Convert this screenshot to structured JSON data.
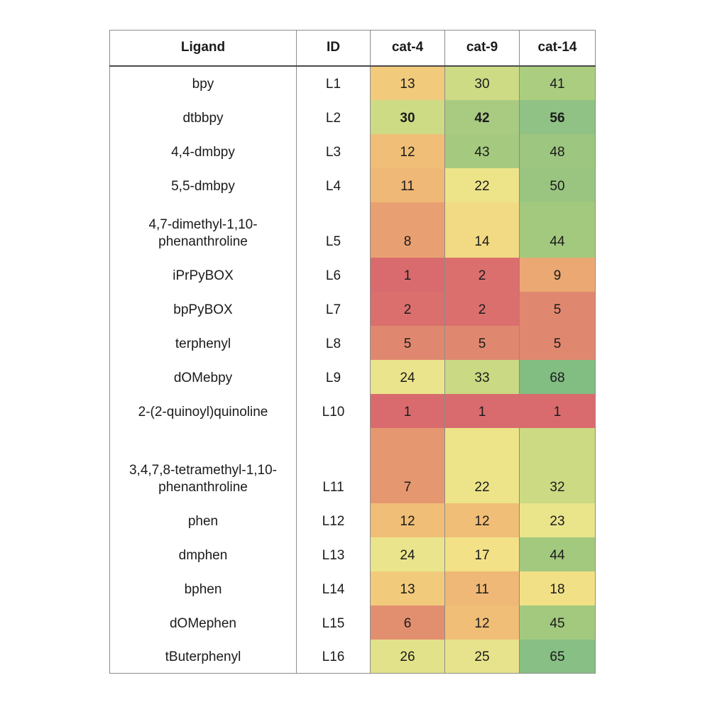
{
  "table": {
    "columns": [
      {
        "label": "Ligand"
      },
      {
        "label": "ID"
      },
      {
        "label": "cat-4"
      },
      {
        "label": "cat-9"
      },
      {
        "label": "cat-14"
      }
    ],
    "rows": [
      {
        "ligand": "bpy",
        "id": "L1",
        "bold": false,
        "cells": [
          {
            "value": "13",
            "color": "#F1CB7B"
          },
          {
            "value": "30",
            "color": "#CDDB85"
          },
          {
            "value": "41",
            "color": "#ABCD80"
          }
        ]
      },
      {
        "ligand": "dtbbpy",
        "id": "L2",
        "bold": true,
        "cells": [
          {
            "value": "30",
            "color": "#CDDB85"
          },
          {
            "value": "42",
            "color": "#A9CB81"
          },
          {
            "value": "56",
            "color": "#8FC284"
          }
        ]
      },
      {
        "ligand": "4,4-dmbpy",
        "id": "L3",
        "bold": false,
        "cells": [
          {
            "value": "12",
            "color": "#F0BE76"
          },
          {
            "value": "43",
            "color": "#A5CA7F"
          },
          {
            "value": "48",
            "color": "#9DC680"
          }
        ]
      },
      {
        "ligand": "5,5-dmbpy",
        "id": "L4",
        "bold": false,
        "cells": [
          {
            "value": "11",
            "color": "#EFB876"
          },
          {
            "value": "22",
            "color": "#EDE489"
          },
          {
            "value": "50",
            "color": "#99C580"
          }
        ]
      },
      {
        "ligand": "4,7-dimethyl-1,10-phenanthroline",
        "id": "L5",
        "bold": false,
        "cells": [
          {
            "value": "8",
            "color": "#E8A072"
          },
          {
            "value": "14",
            "color": "#F1DA83"
          },
          {
            "value": "44",
            "color": "#A3C97E"
          }
        ]
      },
      {
        "ligand": "iPrPyBOX",
        "id": "L6",
        "bold": false,
        "cells": [
          {
            "value": "1",
            "color": "#D96B6E"
          },
          {
            "value": "2",
            "color": "#DA6F6E"
          },
          {
            "value": "9",
            "color": "#EBA873"
          }
        ]
      },
      {
        "ligand": "bpPyBOX",
        "id": "L7",
        "bold": false,
        "cells": [
          {
            "value": "2",
            "color": "#DA6F6E"
          },
          {
            "value": "2",
            "color": "#DA6F6E"
          },
          {
            "value": "5",
            "color": "#E0886F"
          }
        ]
      },
      {
        "ligand": "terphenyl",
        "id": "L8",
        "bold": false,
        "cells": [
          {
            "value": "5",
            "color": "#E0886F"
          },
          {
            "value": "5",
            "color": "#E0886F"
          },
          {
            "value": "5",
            "color": "#E0886F"
          }
        ]
      },
      {
        "ligand": "dOMebpy",
        "id": "L9",
        "bold": false,
        "cells": [
          {
            "value": "24",
            "color": "#EAE58C"
          },
          {
            "value": "33",
            "color": "#CAD983"
          },
          {
            "value": "68",
            "color": "#82BD82"
          }
        ]
      },
      {
        "ligand": "2-(2-quinoyl)quinoline",
        "id": "L10",
        "bold": false,
        "cells": [
          {
            "value": "1",
            "color": "#D96B6E"
          },
          {
            "value": "1",
            "color": "#D96B6E"
          },
          {
            "value": "1",
            "color": "#D96B6E"
          }
        ]
      },
      {
        "ligand": "3,4,7,8-tetramethyl-1,10-phenanthroline",
        "id": "L11",
        "bold": false,
        "cells": [
          {
            "value": "7",
            "color": "#E59770"
          },
          {
            "value": "22",
            "color": "#EDE489"
          },
          {
            "value": "32",
            "color": "#CBDA83"
          }
        ]
      },
      {
        "ligand": "phen",
        "id": "L12",
        "bold": false,
        "cells": [
          {
            "value": "12",
            "color": "#F0BE76"
          },
          {
            "value": "12",
            "color": "#F0BE76"
          },
          {
            "value": "23",
            "color": "#EAE48B"
          }
        ]
      },
      {
        "ligand": "dmphen",
        "id": "L13",
        "bold": false,
        "cells": [
          {
            "value": "24",
            "color": "#EAE58C"
          },
          {
            "value": "17",
            "color": "#F3E187"
          },
          {
            "value": "44",
            "color": "#A3C97E"
          }
        ]
      },
      {
        "ligand": "bphen",
        "id": "L14",
        "bold": false,
        "cells": [
          {
            "value": "13",
            "color": "#F1CB7B"
          },
          {
            "value": "11",
            "color": "#EFB876"
          },
          {
            "value": "18",
            "color": "#F1E086"
          }
        ]
      },
      {
        "ligand": "dOMephen",
        "id": "L15",
        "bold": false,
        "cells": [
          {
            "value": "6",
            "color": "#E28F70"
          },
          {
            "value": "12",
            "color": "#F0BE76"
          },
          {
            "value": "45",
            "color": "#A2C97E"
          }
        ]
      },
      {
        "ligand": "tButerphenyl",
        "id": "L16",
        "bold": false,
        "cells": [
          {
            "value": "26",
            "color": "#E2E28B"
          },
          {
            "value": "25",
            "color": "#E6E38C"
          },
          {
            "value": "65",
            "color": "#87BF84"
          }
        ]
      }
    ]
  },
  "chart_data": {
    "type": "heatmap",
    "title": "",
    "row_label_columns": [
      "Ligand",
      "ID"
    ],
    "columns": [
      "cat-4",
      "cat-9",
      "cat-14"
    ],
    "row_ligands": [
      "bpy",
      "dtbbpy",
      "4,4-dmbpy",
      "5,5-dmbpy",
      "4,7-dimethyl-1,10-phenanthroline",
      "iPrPyBOX",
      "bpPyBOX",
      "terphenyl",
      "dOMebpy",
      "2-(2-quinoyl)quinoline",
      "3,4,7,8-tetramethyl-1,10-phenanthroline",
      "phen",
      "dmphen",
      "bphen",
      "dOMephen",
      "tButerphenyl"
    ],
    "row_ids": [
      "L1",
      "L2",
      "L3",
      "L4",
      "L5",
      "L6",
      "L7",
      "L8",
      "L9",
      "L10",
      "L11",
      "L12",
      "L13",
      "L14",
      "L15",
      "L16"
    ],
    "values": [
      [
        13,
        30,
        41
      ],
      [
        30,
        42,
        56
      ],
      [
        12,
        43,
        48
      ],
      [
        11,
        22,
        50
      ],
      [
        8,
        14,
        44
      ],
      [
        1,
        2,
        9
      ],
      [
        2,
        2,
        5
      ],
      [
        5,
        5,
        5
      ],
      [
        24,
        33,
        68
      ],
      [
        1,
        1,
        1
      ],
      [
        7,
        22,
        32
      ],
      [
        12,
        12,
        23
      ],
      [
        24,
        17,
        44
      ],
      [
        13,
        11,
        18
      ],
      [
        6,
        12,
        45
      ],
      [
        26,
        25,
        65
      ]
    ],
    "bold_rows": [
      "L2"
    ],
    "color_scale": {
      "min_value": 1,
      "max_value": 68,
      "min_color": "#D96B6E",
      "mid_color": "#F0E085",
      "max_color": "#80BC83"
    },
    "legend_position": "none",
    "grid": "vertical-only"
  }
}
